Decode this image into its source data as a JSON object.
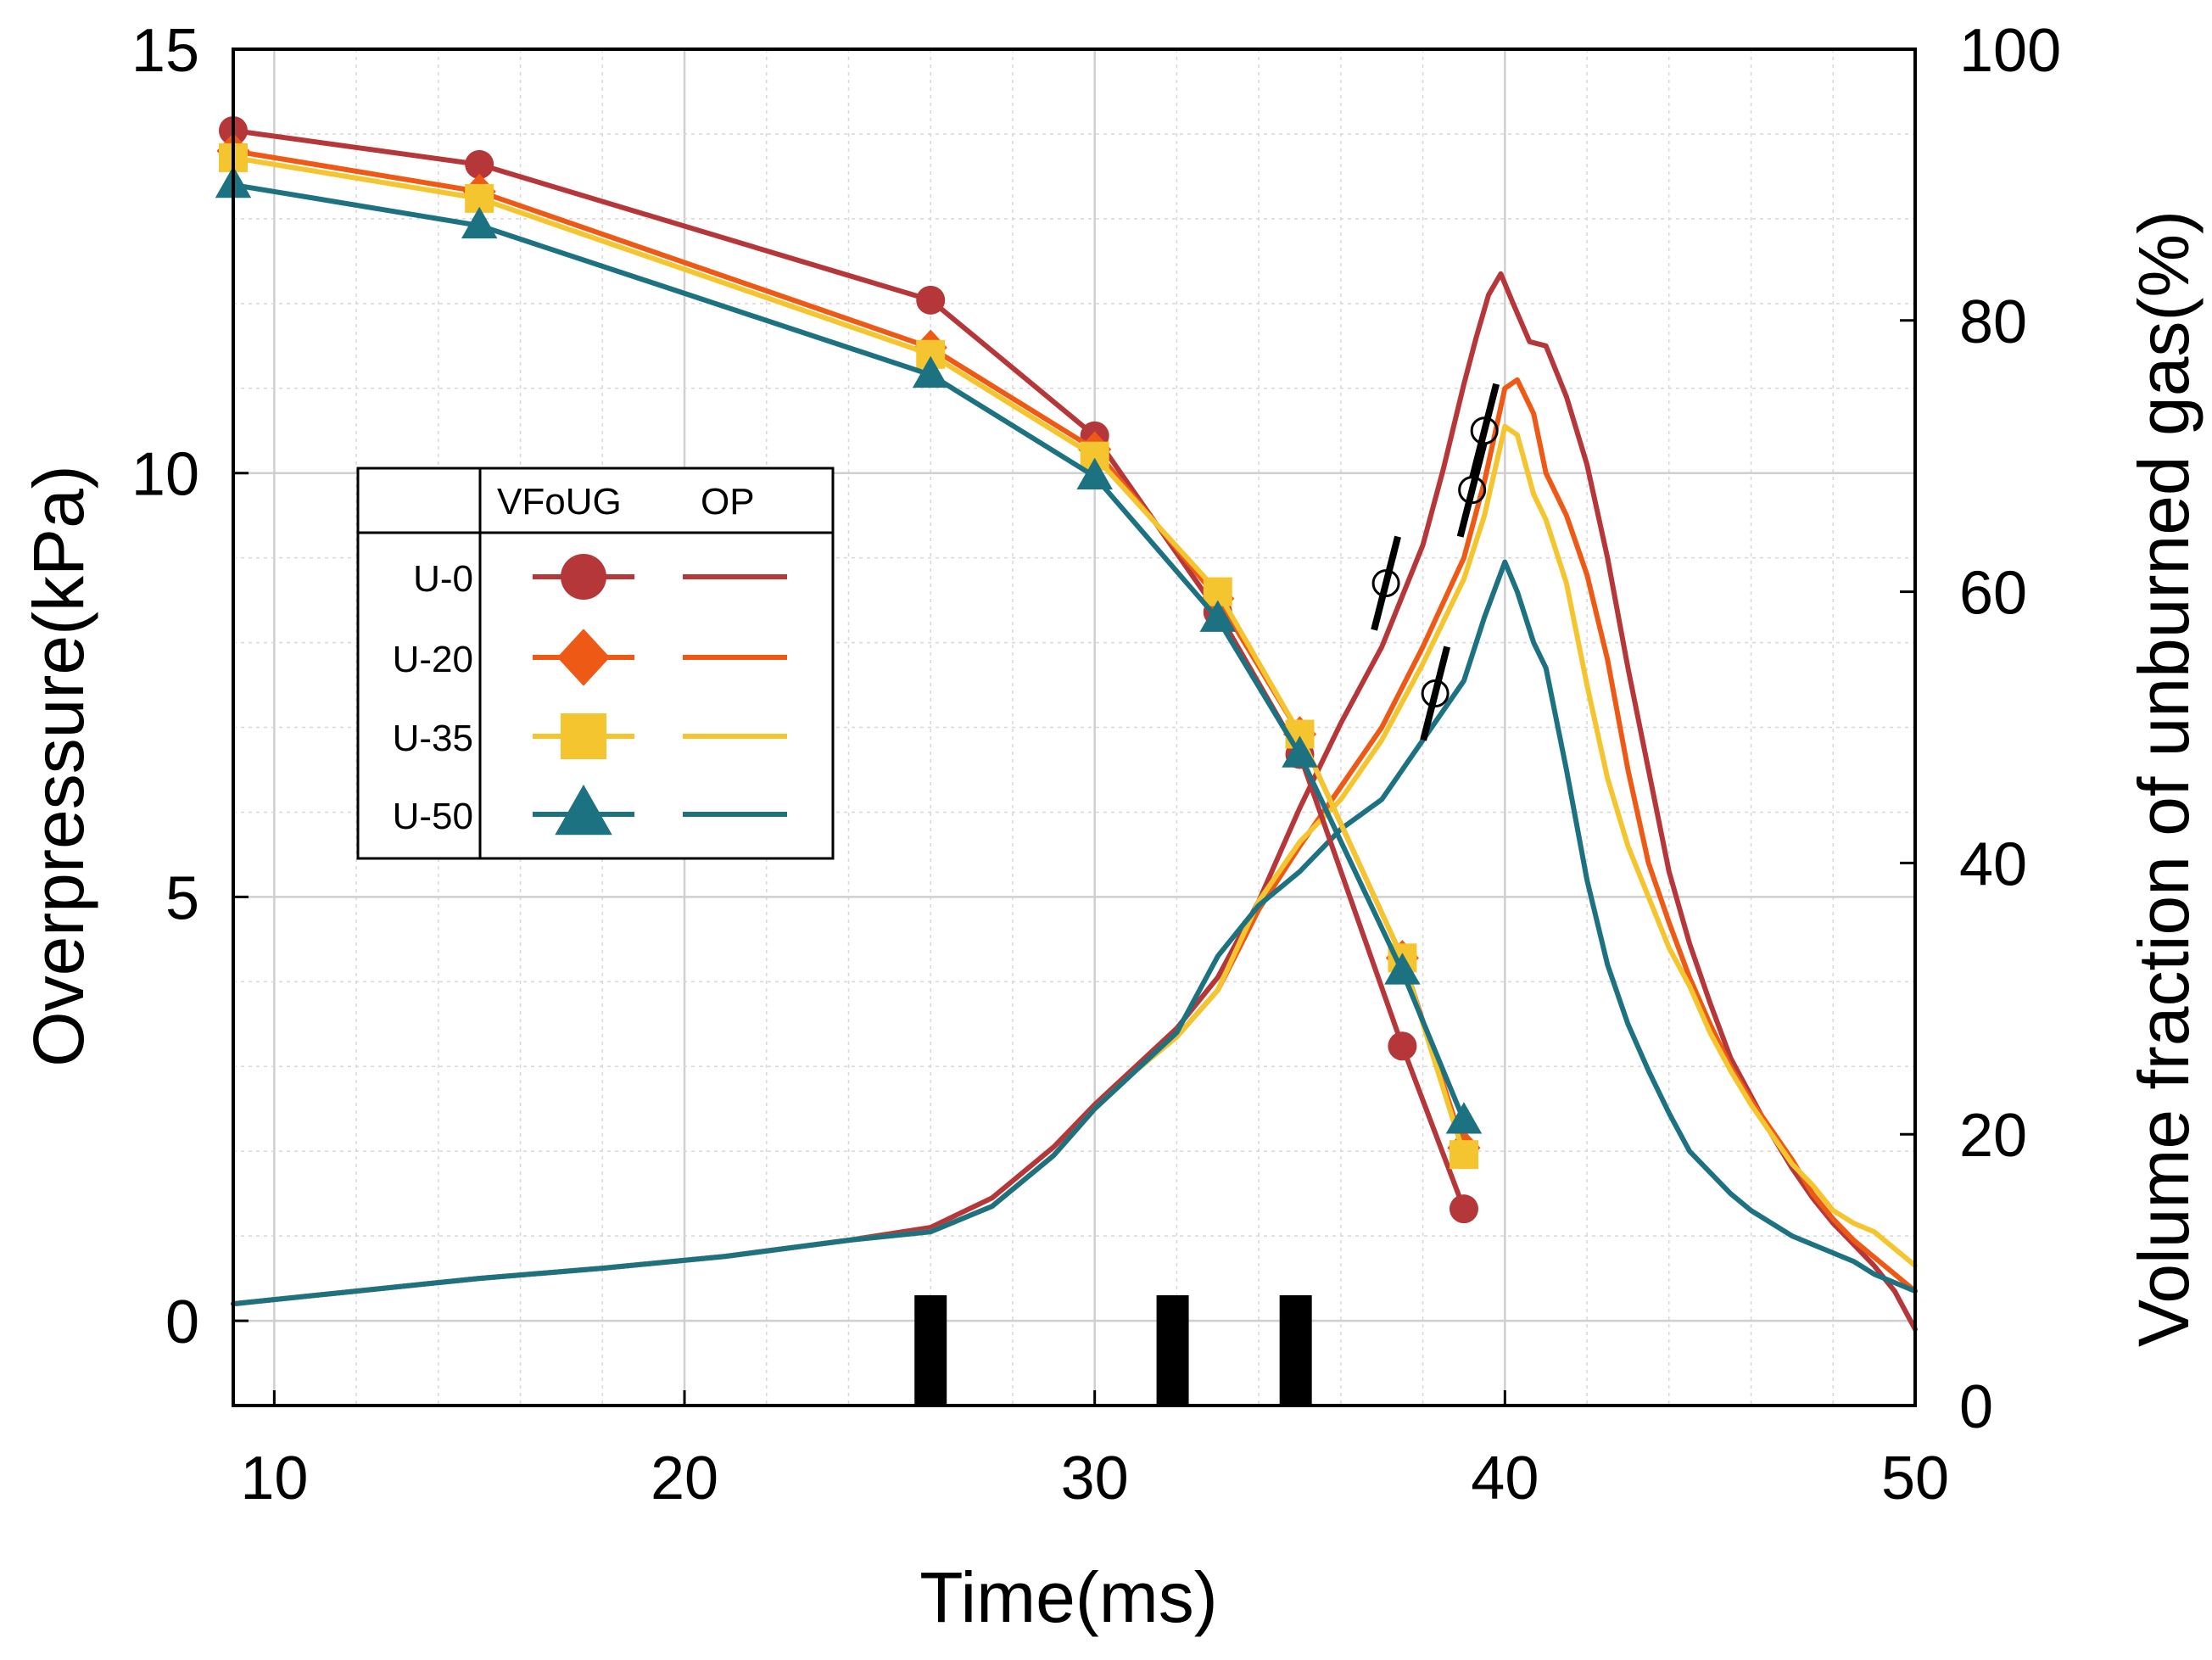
{
  "chart_data": {
    "type": "line",
    "xlabel": "Time(ms)",
    "ylabel_left": "Overpressure(kPa)",
    "ylabel_right": "Volume fraction of unburned gas(%)",
    "xlim": [
      9,
      50
    ],
    "ylim_left": [
      -1,
      15
    ],
    "ylim_right": [
      0,
      100
    ],
    "x_ticks": [
      "10",
      "20",
      "30",
      "40",
      "50"
    ],
    "y_ticks_left": [
      "0",
      "5",
      "10",
      "15"
    ],
    "y_ticks_right": [
      "0",
      "20",
      "40",
      "60",
      "80",
      "100"
    ],
    "grid": true,
    "legend": {
      "position": "left-center",
      "header": [
        "VFoUG",
        "OP"
      ],
      "entries": [
        "U-0",
        "U-20",
        "U-35",
        "U-50"
      ]
    },
    "colors": {
      "U-0": "#b5373a",
      "U-20": "#ee5a16",
      "U-35": "#f5c530",
      "U-50": "#1d7282"
    },
    "vfoug_series": [
      {
        "name": "U-0",
        "marker": "circle",
        "axis": "right",
        "x": [
          9,
          15,
          26,
          30,
          33,
          35,
          37.5,
          39
        ],
        "y": [
          94,
          91.5,
          81.5,
          71.5,
          58.5,
          48,
          26.5,
          14.5
        ]
      },
      {
        "name": "U-20",
        "marker": "diamond",
        "axis": "right",
        "x": [
          9,
          15,
          26,
          30,
          33,
          35,
          37.5,
          39
        ],
        "y": [
          92.5,
          89.5,
          78,
          70.5,
          59.5,
          49.5,
          33,
          19
        ]
      },
      {
        "name": "U-35",
        "marker": "square",
        "axis": "right",
        "x": [
          9,
          15,
          26,
          30,
          33,
          35,
          37.5,
          39
        ],
        "y": [
          92,
          89,
          77.5,
          70,
          60,
          49.5,
          33,
          18.5
        ]
      },
      {
        "name": "U-50",
        "marker": "triangle",
        "axis": "right",
        "x": [
          9,
          15,
          26,
          30,
          33,
          35,
          37.5,
          39
        ],
        "y": [
          90,
          87,
          76,
          68.5,
          58,
          48,
          32,
          21
        ]
      }
    ],
    "op_series": [
      {
        "name": "U-0",
        "axis": "left",
        "x": [
          9,
          12,
          15,
          18,
          21,
          24,
          26,
          27.5,
          29,
          30,
          31,
          32,
          33,
          34,
          35,
          36,
          37,
          38,
          38.5,
          39,
          39.3,
          39.6,
          39.9,
          40.2,
          40.6,
          41,
          41.5,
          42,
          42.5,
          43,
          43.5,
          44,
          44.5,
          45,
          45.5,
          46,
          46.5,
          47,
          47.5,
          48,
          48.5,
          49,
          49.5,
          50
        ],
        "y": [
          0.2,
          0.35,
          0.5,
          0.62,
          0.76,
          0.95,
          1.1,
          1.45,
          2.05,
          2.55,
          3.0,
          3.45,
          4.05,
          4.95,
          6.05,
          7.05,
          7.95,
          9.15,
          10.05,
          11.05,
          11.6,
          12.1,
          12.35,
          12.0,
          11.55,
          11.5,
          10.9,
          10.1,
          9.0,
          7.7,
          6.5,
          5.3,
          4.45,
          3.75,
          3.1,
          2.65,
          2.2,
          1.8,
          1.45,
          1.15,
          0.9,
          0.65,
          0.35,
          -0.1
        ]
      },
      {
        "name": "U-20",
        "axis": "left",
        "x": [
          9,
          12,
          15,
          18,
          21,
          24,
          26,
          27.5,
          29,
          30,
          31,
          32,
          33,
          34,
          35,
          36,
          37,
          38,
          39,
          39.5,
          40,
          40.3,
          40.7,
          41,
          41.5,
          42,
          42.5,
          43,
          43.5,
          44,
          44.5,
          45,
          45.5,
          46,
          46.5,
          47,
          47.5,
          48,
          48.5,
          49,
          49.5,
          50
        ],
        "y": [
          0.2,
          0.35,
          0.5,
          0.62,
          0.76,
          0.95,
          1.05,
          1.35,
          1.95,
          2.5,
          2.95,
          3.35,
          3.9,
          4.85,
          5.6,
          6.3,
          7.0,
          7.95,
          9.0,
          9.9,
          11.0,
          11.1,
          10.7,
          10.0,
          9.5,
          8.8,
          7.8,
          6.5,
          5.4,
          4.7,
          4.05,
          3.5,
          3.0,
          2.6,
          2.25,
          1.9,
          1.5,
          1.2,
          0.95,
          0.75,
          0.55,
          0.35
        ]
      },
      {
        "name": "U-35",
        "axis": "left",
        "x": [
          9,
          12,
          15,
          18,
          21,
          24,
          26,
          27.5,
          29,
          30,
          31,
          32,
          33,
          34,
          35,
          36,
          37,
          38,
          39,
          39.5,
          40,
          40.3,
          40.7,
          41,
          41.5,
          42,
          42.5,
          43,
          43.5,
          44,
          44.5,
          45,
          45.5,
          46,
          46.5,
          47,
          47.5,
          48,
          48.5,
          49,
          49.5,
          50
        ],
        "y": [
          0.2,
          0.35,
          0.5,
          0.62,
          0.76,
          0.95,
          1.05,
          1.35,
          1.95,
          2.5,
          2.95,
          3.35,
          3.9,
          4.95,
          5.65,
          6.15,
          6.85,
          7.75,
          8.75,
          9.5,
          10.55,
          10.45,
          9.75,
          9.45,
          8.7,
          7.5,
          6.4,
          5.6,
          5.0,
          4.4,
          3.95,
          3.4,
          2.95,
          2.55,
          2.2,
          1.85,
          1.6,
          1.3,
          1.15,
          1.05,
          0.85,
          0.65
        ]
      },
      {
        "name": "U-50",
        "axis": "left",
        "x": [
          9,
          12,
          15,
          18,
          21,
          24,
          26,
          27.5,
          29,
          30,
          31,
          32,
          33,
          34,
          35,
          36,
          37,
          38,
          39,
          39.5,
          40,
          40.3,
          40.7,
          41,
          41.5,
          42,
          42.5,
          43,
          43.5,
          44,
          44.5,
          45,
          45.5,
          46,
          46.5,
          47,
          47.5,
          48,
          48.5,
          49,
          49.5,
          50
        ],
        "y": [
          0.2,
          0.35,
          0.5,
          0.62,
          0.76,
          0.95,
          1.05,
          1.35,
          1.95,
          2.5,
          2.95,
          3.4,
          4.3,
          4.9,
          5.3,
          5.8,
          6.15,
          6.85,
          7.55,
          8.3,
          8.95,
          8.6,
          8.0,
          7.7,
          6.5,
          5.2,
          4.2,
          3.5,
          2.95,
          2.45,
          2.0,
          1.75,
          1.5,
          1.3,
          1.15,
          1.0,
          0.9,
          0.8,
          0.7,
          0.55,
          0.45,
          0.35
        ]
      }
    ],
    "annotations": {
      "black_bars_x": [
        26,
        31.9,
        34.9
      ],
      "markers": [
        {
          "x": 37.1,
          "y": 8.7,
          "axis": "left"
        },
        {
          "x": 38.3,
          "y": 7.4,
          "axis": "left"
        },
        {
          "x": 39.2,
          "y": 9.8,
          "axis": "left"
        },
        {
          "x": 39.5,
          "y": 10.5,
          "axis": "left"
        }
      ]
    }
  }
}
